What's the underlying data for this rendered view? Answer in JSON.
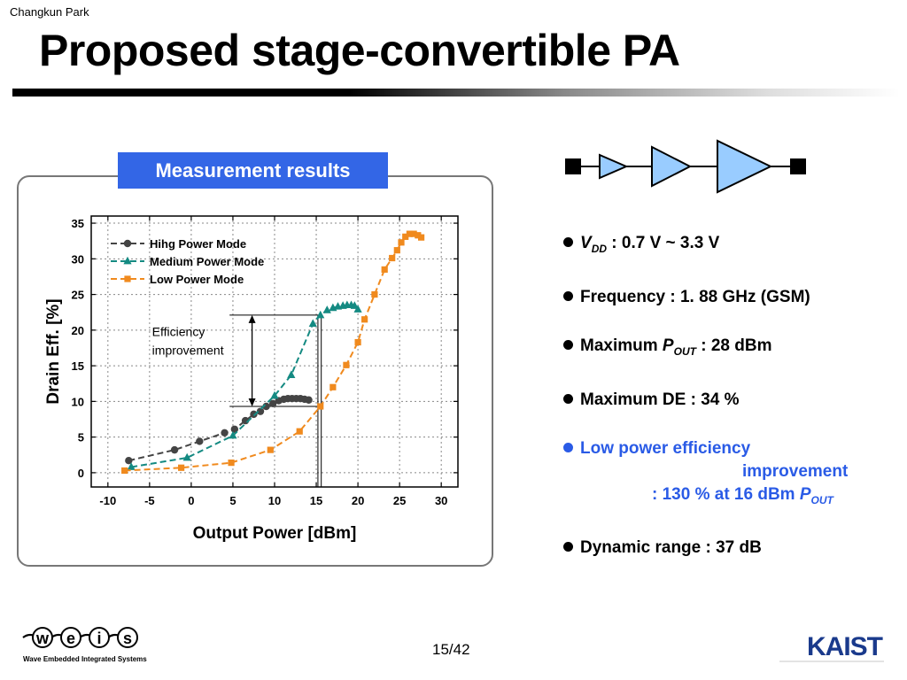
{
  "header": {
    "author": "Changkun Park",
    "title": "Proposed stage-convertible PA"
  },
  "panel": {
    "title": "Measurement results"
  },
  "chart_data": {
    "type": "line",
    "xlabel": "Output Power [dBm]",
    "ylabel": "Drain Eff. [%]",
    "xlim": [
      -12,
      32
    ],
    "ylim": [
      -2,
      36
    ],
    "xticks": [
      -10,
      -5,
      0,
      5,
      10,
      15,
      20,
      25,
      30
    ],
    "yticks": [
      0,
      5,
      10,
      15,
      20,
      25,
      30,
      35
    ],
    "legend_position": "top-left",
    "series": [
      {
        "name": "Hihg Power Mode",
        "color": "#444444",
        "marker": "circle",
        "x": [
          -7.5,
          -2,
          1,
          4,
          5.2,
          6.5,
          7.5,
          8.3,
          9,
          9.8,
          10.5,
          11.1,
          11.6,
          12.1,
          12.6,
          13.1,
          13.6,
          14.1
        ],
        "y": [
          1.7,
          3.2,
          4.4,
          5.6,
          6.1,
          7.3,
          8.2,
          8.6,
          9.3,
          9.7,
          10.1,
          10.3,
          10.4,
          10.4,
          10.4,
          10.4,
          10.3,
          10.2
        ]
      },
      {
        "name": "Medium Power Mode",
        "color": "#148a82",
        "marker": "triangle",
        "x": [
          -7.2,
          -0.5,
          5,
          10,
          12,
          14.6,
          15.5,
          16.3,
          17,
          17.6,
          18.2,
          18.7,
          19.2,
          19.6,
          20
        ],
        "y": [
          0.8,
          2.1,
          5.2,
          10.8,
          13.7,
          20.9,
          22.1,
          22.8,
          23.1,
          23.3,
          23.4,
          23.5,
          23.5,
          23.4,
          22.9
        ]
      },
      {
        "name": "Low Power Mode",
        "color": "#f08a1e",
        "marker": "square",
        "x": [
          -8,
          -1.2,
          4.8,
          9.5,
          13,
          15.5,
          17,
          18.6,
          20,
          20.8,
          22,
          23.2,
          24.1,
          24.7,
          25.2,
          25.7,
          26.2,
          26.7,
          27.2,
          27.6
        ],
        "y": [
          0.3,
          0.7,
          1.4,
          3.2,
          5.8,
          9.3,
          12,
          15.1,
          18.3,
          21.5,
          25,
          28.5,
          30.1,
          31.2,
          32.3,
          33.1,
          33.5,
          33.5,
          33.3,
          33
        ],
        "peak_efficiency_at_27_dBm": 33.5
      }
    ],
    "annotation": {
      "text": [
        "Efficiency",
        "improvement"
      ]
    }
  },
  "specs": [
    {
      "symbol": "V",
      "sub": "DD",
      "text": " : 0.7 V ~ 3.3 V"
    },
    {
      "text": "Frequency : 1. 88 GHz (GSM)"
    },
    {
      "label": "Maximum ",
      "symbol": "P",
      "sub": "OUT",
      "text": " : 28 dBm"
    },
    {
      "text": "Maximum DE : 34 %"
    },
    {
      "line1": "Low power efficiency",
      "line2": "improvement",
      "line3_text": ": 130 % at 16 dBm ",
      "line3_symbol": "P",
      "line3_sub": "OUT",
      "color": "#2a5be6"
    },
    {
      "text": "Dynamic range : 37 dB"
    }
  ],
  "footer": {
    "weis_letters": [
      "w",
      "e",
      "i",
      "s"
    ],
    "weis_tagline": "Wave  Embedded  Integrated  Systems",
    "page": "15/42",
    "kaist": "KAIST"
  },
  "colors": {
    "accent_blue": "#3366e6",
    "triangle_fill": "#99ccff"
  }
}
